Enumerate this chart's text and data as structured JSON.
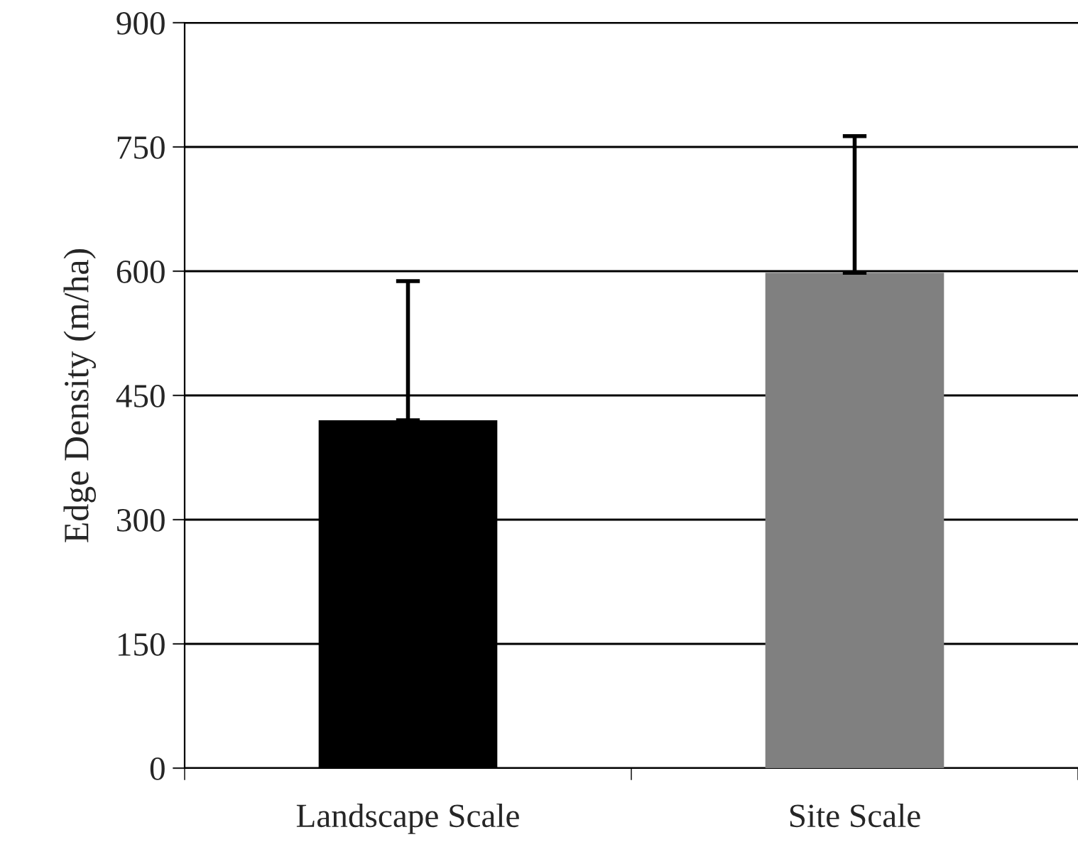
{
  "chart_data": {
    "type": "bar",
    "ylabel": "Edge Density (m/ha)",
    "categories": [
      "Landscape Scale",
      "Site Scale"
    ],
    "series": [
      {
        "colors": [
          "#000000",
          "#808080"
        ],
        "values": [
          420,
          598
        ],
        "errors": [
          [
            420,
            588
          ],
          [
            598,
            763
          ]
        ]
      }
    ],
    "ylim": [
      0,
      900
    ],
    "yticks": [
      0,
      150,
      300,
      450,
      600,
      750,
      900
    ],
    "grid": "y",
    "legend": false
  }
}
